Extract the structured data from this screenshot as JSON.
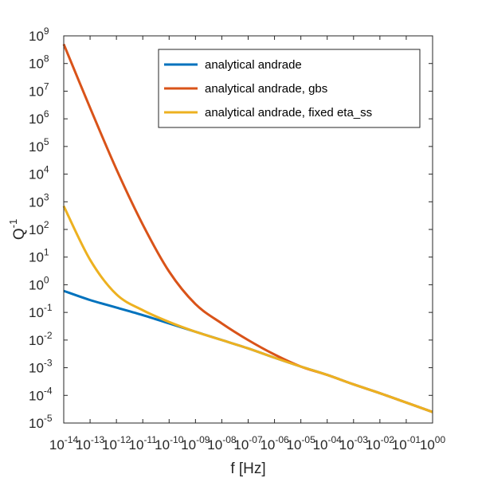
{
  "chart_data": {
    "type": "line",
    "title": "",
    "xlabel": "f [Hz]",
    "ylabel_base": "Q",
    "ylabel_exp": "-1",
    "xscale": "log",
    "yscale": "log",
    "xlim": [
      1e-14,
      1
    ],
    "ylim": [
      1e-05,
      1000000000.0
    ],
    "x_tick_base": "10",
    "x_ticks": [
      {
        "value": 1e-14,
        "exp": "-14"
      },
      {
        "value": 1e-13,
        "exp": "-13"
      },
      {
        "value": 1e-12,
        "exp": "-12"
      },
      {
        "value": 1e-11,
        "exp": "-11"
      },
      {
        "value": 1e-10,
        "exp": "-10"
      },
      {
        "value": 1e-09,
        "exp": "-09"
      },
      {
        "value": 1e-08,
        "exp": "-08"
      },
      {
        "value": 1e-07,
        "exp": "-07"
      },
      {
        "value": 1e-06,
        "exp": "-06"
      },
      {
        "value": 1e-05,
        "exp": "-05"
      },
      {
        "value": 0.0001,
        "exp": "-04"
      },
      {
        "value": 0.001,
        "exp": "-03"
      },
      {
        "value": 0.01,
        "exp": "-02"
      },
      {
        "value": 0.1,
        "exp": "-01"
      },
      {
        "value": 1,
        "exp": "00"
      }
    ],
    "y_tick_base": "10",
    "y_ticks": [
      {
        "value": 1e-05,
        "exp": "-5"
      },
      {
        "value": 0.0001,
        "exp": "-4"
      },
      {
        "value": 0.001,
        "exp": "-3"
      },
      {
        "value": 0.01,
        "exp": "-2"
      },
      {
        "value": 0.1,
        "exp": "-1"
      },
      {
        "value": 1,
        "exp": "0"
      },
      {
        "value": 10.0,
        "exp": "1"
      },
      {
        "value": 100.0,
        "exp": "2"
      },
      {
        "value": 1000.0,
        "exp": "3"
      },
      {
        "value": 10000.0,
        "exp": "4"
      },
      {
        "value": 100000.0,
        "exp": "5"
      },
      {
        "value": 1000000.0,
        "exp": "6"
      },
      {
        "value": 10000000.0,
        "exp": "7"
      },
      {
        "value": 100000000.0,
        "exp": "8"
      },
      {
        "value": 1000000000.0,
        "exp": "9"
      }
    ],
    "grid": false,
    "legend_position": "top-right",
    "series": [
      {
        "name": "analytical andrade",
        "color": "#0072BD",
        "x": [
          1e-14,
          1e-13,
          1e-12,
          1e-11,
          1e-10,
          1e-09,
          1e-08,
          1e-07,
          1e-06,
          1e-05,
          0.0001,
          0.001,
          0.01,
          0.1,
          1
        ],
        "y": [
          0.6,
          0.28,
          0.15,
          0.08,
          0.04,
          0.02,
          0.01,
          0.005,
          0.0023,
          0.0011,
          0.00055,
          0.00025,
          0.00012,
          5.5e-05,
          2.5e-05
        ]
      },
      {
        "name": "analytical andrade, gbs",
        "color": "#D95319",
        "x": [
          1e-14,
          1e-13,
          1e-12,
          1e-11,
          1e-10,
          1e-09,
          1e-08,
          1e-07,
          1e-06,
          1e-05,
          0.0001,
          0.001,
          0.01,
          0.1,
          1
        ],
        "y": [
          500000000.0,
          2500000.0,
          15000.0,
          150,
          3,
          0.2,
          0.04,
          0.01,
          0.003,
          0.0011,
          0.00055,
          0.00025,
          0.00012,
          5.5e-05,
          2.5e-05
        ]
      },
      {
        "name": "analytical andrade, fixed eta_ss",
        "color": "#EDB120",
        "x": [
          1e-14,
          1e-13,
          1e-12,
          1e-11,
          1e-10,
          1e-09,
          1e-08,
          1e-07,
          1e-06,
          1e-05,
          0.0001,
          0.001,
          0.01,
          0.1,
          1
        ],
        "y": [
          700,
          8,
          0.45,
          0.12,
          0.045,
          0.02,
          0.01,
          0.005,
          0.0023,
          0.0011,
          0.00055,
          0.00025,
          0.00012,
          5.5e-05,
          2.5e-05
        ]
      }
    ]
  }
}
